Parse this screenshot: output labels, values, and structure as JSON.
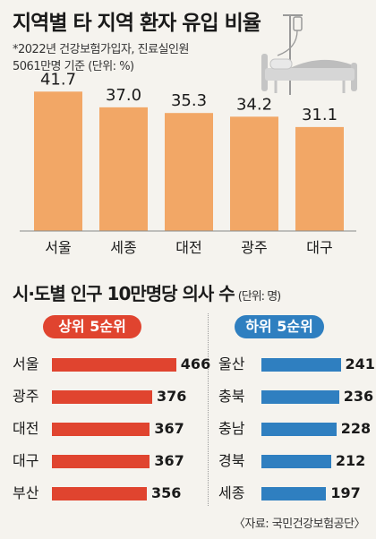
{
  "header": {
    "title": "지역별 타 지역 환자 유입 비율",
    "note_line1": "*2022년 건강보험가입자, 진료실인원",
    "note_line2": "5061만명 기준  (단위: %)"
  },
  "section2": {
    "title": "시·도별 인구 10만명당 의사 수",
    "unit": "(단위: 명)"
  },
  "source": "〈자료: 국민건강보험공단〉",
  "chart_data": [
    {
      "type": "bar",
      "title": "지역별 타 지역 환자 유입 비율",
      "categories": [
        "서울",
        "세종",
        "대전",
        "광주",
        "대구"
      ],
      "values": [
        41.7,
        37.0,
        35.3,
        34.2,
        31.1
      ],
      "value_labels": [
        "41.7",
        "37.0",
        "35.3",
        "34.2",
        "31.1"
      ],
      "ylabel": "",
      "unit": "%",
      "ylim": [
        0,
        45
      ],
      "color": "#f2a766"
    },
    {
      "type": "bar",
      "orientation": "horizontal",
      "title": "상위 5순위",
      "categories": [
        "서울",
        "광주",
        "대전",
        "대구",
        "부산"
      ],
      "values": [
        466,
        376,
        367,
        367,
        356
      ],
      "xlim": [
        0,
        470
      ],
      "color": "#e0442f"
    },
    {
      "type": "bar",
      "orientation": "horizontal",
      "title": "하위 5순위",
      "categories": [
        "울산",
        "충북",
        "충남",
        "경북",
        "세종"
      ],
      "values": [
        241,
        236,
        228,
        212,
        197
      ],
      "xlim": [
        0,
        245
      ],
      "color": "#2f7fc0"
    }
  ],
  "icons": {
    "hospital_bed": "hospital-bed-icon"
  }
}
